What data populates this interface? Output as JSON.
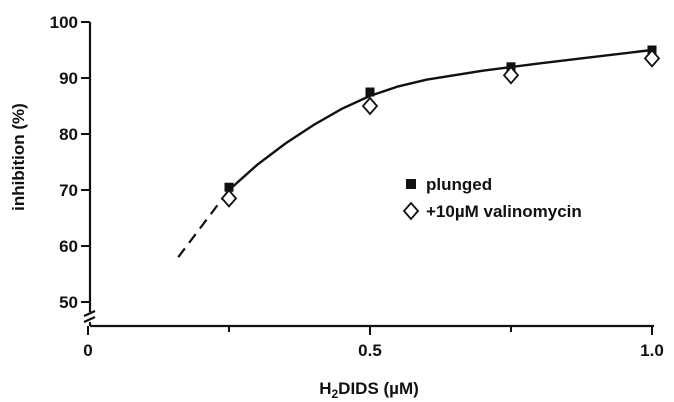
{
  "chart_data": {
    "type": "scatter",
    "title": "",
    "xlabel": {
      "prefix": "H",
      "sub": "2",
      "suffix": "DIDS (µM)"
    },
    "ylabel": "inhibition (%)",
    "xlim": [
      0,
      1.0
    ],
    "ylim": [
      50,
      100
    ],
    "x_axis_break": true,
    "y_axis_break": true,
    "grid": false,
    "legend_position": "right",
    "x_ticks": [
      {
        "value": 0,
        "label": "0"
      },
      {
        "value": 0.5,
        "label": "0.5"
      },
      {
        "value": 1.0,
        "label": "1.0"
      }
    ],
    "y_ticks": [
      {
        "value": 50,
        "label": "50"
      },
      {
        "value": 60,
        "label": "60"
      },
      {
        "value": 70,
        "label": "70"
      },
      {
        "value": 80,
        "label": "80"
      },
      {
        "value": 90,
        "label": "90"
      },
      {
        "value": 100,
        "label": "100"
      }
    ],
    "series": [
      {
        "name": "plunged",
        "marker": "square-filled",
        "x": [
          0.25,
          0.5,
          0.75,
          1.0
        ],
        "y": [
          70.5,
          87.5,
          92.0,
          95.0
        ]
      },
      {
        "name": "+10µM valinomycin",
        "marker": "diamond-open",
        "x": [
          0.25,
          0.5,
          0.75,
          1.0
        ],
        "y": [
          68.5,
          85.0,
          90.5,
          93.5
        ]
      }
    ],
    "fit_curve": {
      "solid": {
        "x": [
          0.25,
          0.3,
          0.35,
          0.4,
          0.45,
          0.5,
          0.55,
          0.6,
          0.7,
          0.8,
          0.9,
          1.0
        ],
        "y": [
          70.0,
          74.5,
          78.3,
          81.6,
          84.5,
          86.8,
          88.5,
          89.7,
          91.3,
          92.6,
          93.8,
          95.0
        ]
      },
      "dashed": {
        "x": [
          0.16,
          0.25
        ],
        "y": [
          58.0,
          70.0
        ]
      }
    }
  }
}
